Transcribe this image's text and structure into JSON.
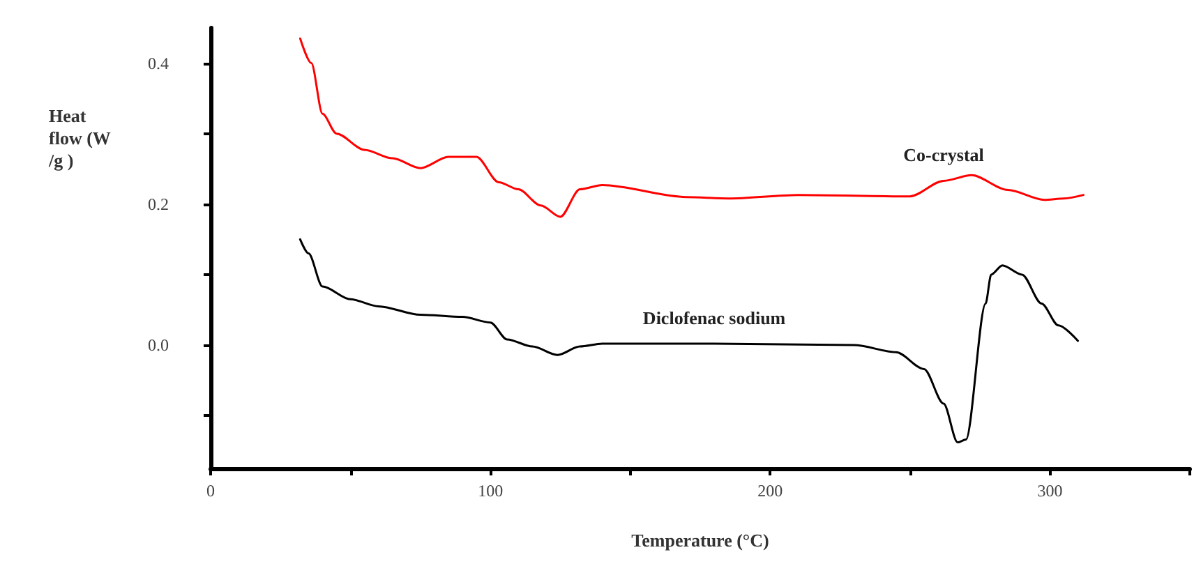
{
  "chart_data": {
    "type": "line",
    "xlabel": "Temperature (°C)",
    "ylabel": "Heat flow (W/g )",
    "xlim": [
      0,
      350
    ],
    "xticks": [
      0,
      {
        "value": 50,
        "label": null
      },
      100,
      {
        "value": 150,
        "label": null
      },
      200,
      {
        "value": 250,
        "label": null
      },
      300,
      {
        "value": 350,
        "label": null
      }
    ],
    "ylim": [
      -0.175,
      0.45
    ],
    "yticks": [
      {
        "value": -0.1,
        "label": null
      },
      {
        "value": 0,
        "label": "0.0"
      },
      {
        "value": 0.1,
        "label": null
      },
      0.2,
      {
        "value": 0.3,
        "label": null
      },
      0.4
    ],
    "grid": false,
    "legend": false,
    "marker": "none",
    "line_style": "solid",
    "series": [
      {
        "name": "Co-crystal",
        "color": "#ff0000",
        "x": [
          32,
          36,
          40,
          45,
          55,
          65,
          75,
          85,
          95,
          103,
          110,
          118,
          125,
          132,
          140,
          170,
          185,
          210,
          250,
          262,
          272,
          285,
          298,
          305,
          312
        ],
        "values": [
          0.435,
          0.4,
          0.328,
          0.3,
          0.277,
          0.265,
          0.251,
          0.267,
          0.267,
          0.231,
          0.221,
          0.198,
          0.182,
          0.221,
          0.227,
          0.21,
          0.208,
          0.213,
          0.211,
          0.233,
          0.241,
          0.22,
          0.206,
          0.208,
          0.213
        ]
      },
      {
        "name": "Diclofenac sodium",
        "color": "#000000",
        "x": [
          32,
          35,
          40,
          50,
          60,
          75,
          90,
          100,
          106,
          115,
          124,
          132,
          140,
          180,
          230,
          245,
          255,
          262,
          267,
          270,
          277,
          279,
          283,
          290,
          297,
          303,
          310
        ],
        "values": [
          0.15,
          0.13,
          0.083,
          0.065,
          0.055,
          0.043,
          0.04,
          0.032,
          0.008,
          -0.002,
          -0.014,
          -0.002,
          0.002,
          0.002,
          0,
          -0.01,
          -0.034,
          -0.083,
          -0.138,
          -0.134,
          0.059,
          0.1,
          0.113,
          0.1,
          0.059,
          0.028,
          0.006
        ]
      }
    ]
  }
}
